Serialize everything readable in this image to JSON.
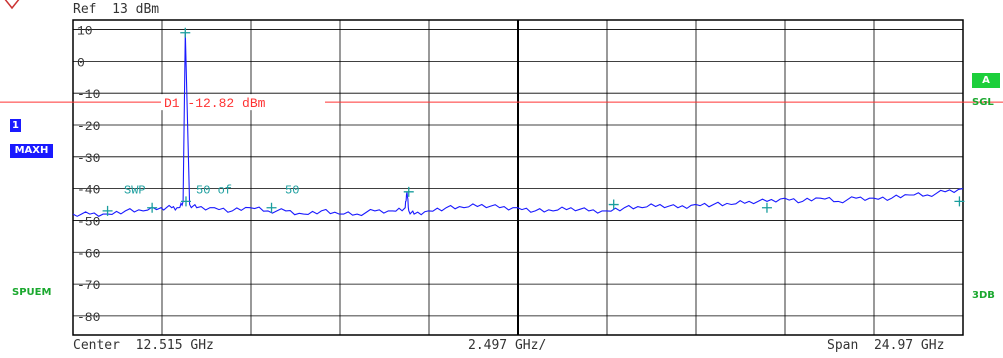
{
  "header": {
    "ref_label": "Ref  13 dBm"
  },
  "side_labels": {
    "trace_number": "1",
    "trace_mode": "MAXH",
    "sweep_indicator": "A",
    "sweep_mode": "SGL",
    "measurement_mode": "SPUEM",
    "bandwidth_mode": "3DB"
  },
  "footer": {
    "center_label": "Center  12.515 GHz",
    "span_per_div_label": "2.497 GHz/",
    "span_label": "Span  24.97 GHz"
  },
  "colors": {
    "trace": "#1a1aff",
    "marker": "#1a9e9e",
    "display_line": "#ff3333",
    "grid": "#000000",
    "status_green": "#1ccf3b"
  },
  "chart_data": {
    "type": "line",
    "title": "",
    "xlabel": "",
    "ylabel": "",
    "xlim": [
      0.03,
      25.0
    ],
    "ylim": [
      -86,
      13
    ],
    "x_unit": "GHz",
    "y_unit": "dBm",
    "ytick_values": [
      10,
      0,
      -10,
      -20,
      -30,
      -40,
      -50,
      -60,
      -70,
      -80
    ],
    "ytick_labels": [
      "10",
      "0",
      "-10",
      "-20",
      "-30",
      "-40",
      "-50",
      "-60",
      "-70",
      "-80"
    ],
    "grid": true,
    "display_line": {
      "label": "D1  -12.82  dBm",
      "value": -12.82
    },
    "sweep_annotation": {
      "label_left": "SWP",
      "label_mid": "50 of",
      "label_right": "50"
    },
    "series": [
      {
        "values_x": [
          0.03,
          0.5,
          1.0,
          1.5,
          2.0,
          2.5,
          2.8,
          3.0,
          3.12,
          3.18,
          3.3,
          3.5,
          4.0,
          4.5,
          5.0,
          5.5,
          6.0,
          6.5,
          7.0,
          7.5,
          8.0,
          8.5,
          9.0,
          9.35,
          9.4,
          9.45,
          9.6,
          10.0,
          10.5,
          11.0,
          11.5,
          12.0,
          12.5,
          13.0,
          13.5,
          14.0,
          14.5,
          15.0,
          15.5,
          16.0,
          16.5,
          17.0,
          17.5,
          18.0,
          18.5,
          19.0,
          19.5,
          20.0,
          20.5,
          21.0,
          21.5,
          22.0,
          22.5,
          23.0,
          23.5,
          24.0,
          24.5,
          25.0
        ],
        "values_y": [
          -48,
          -48,
          -48,
          -47,
          -47,
          -46,
          -46,
          -46,
          -44,
          9,
          -45,
          -46,
          -46,
          -47,
          -46,
          -47,
          -47,
          -48,
          -47,
          -48,
          -48,
          -47,
          -47,
          -46,
          -41,
          -47,
          -48,
          -47,
          -46,
          -46,
          -45,
          -46,
          -46,
          -47,
          -47,
          -46,
          -47,
          -47,
          -46,
          -46,
          -45,
          -46,
          -45,
          -45,
          -45,
          -44,
          -44,
          -43,
          -44,
          -43,
          -44,
          -43,
          -43,
          -43,
          -42,
          -42,
          -41,
          -40
        ]
      }
    ],
    "markers_x": [
      1.0,
      2.25,
      3.2,
      5.6,
      9.45,
      15.2,
      19.5,
      24.9
    ],
    "markers_y": [
      -47,
      -46,
      -44,
      -46,
      -41,
      -45,
      -46,
      -44
    ]
  }
}
